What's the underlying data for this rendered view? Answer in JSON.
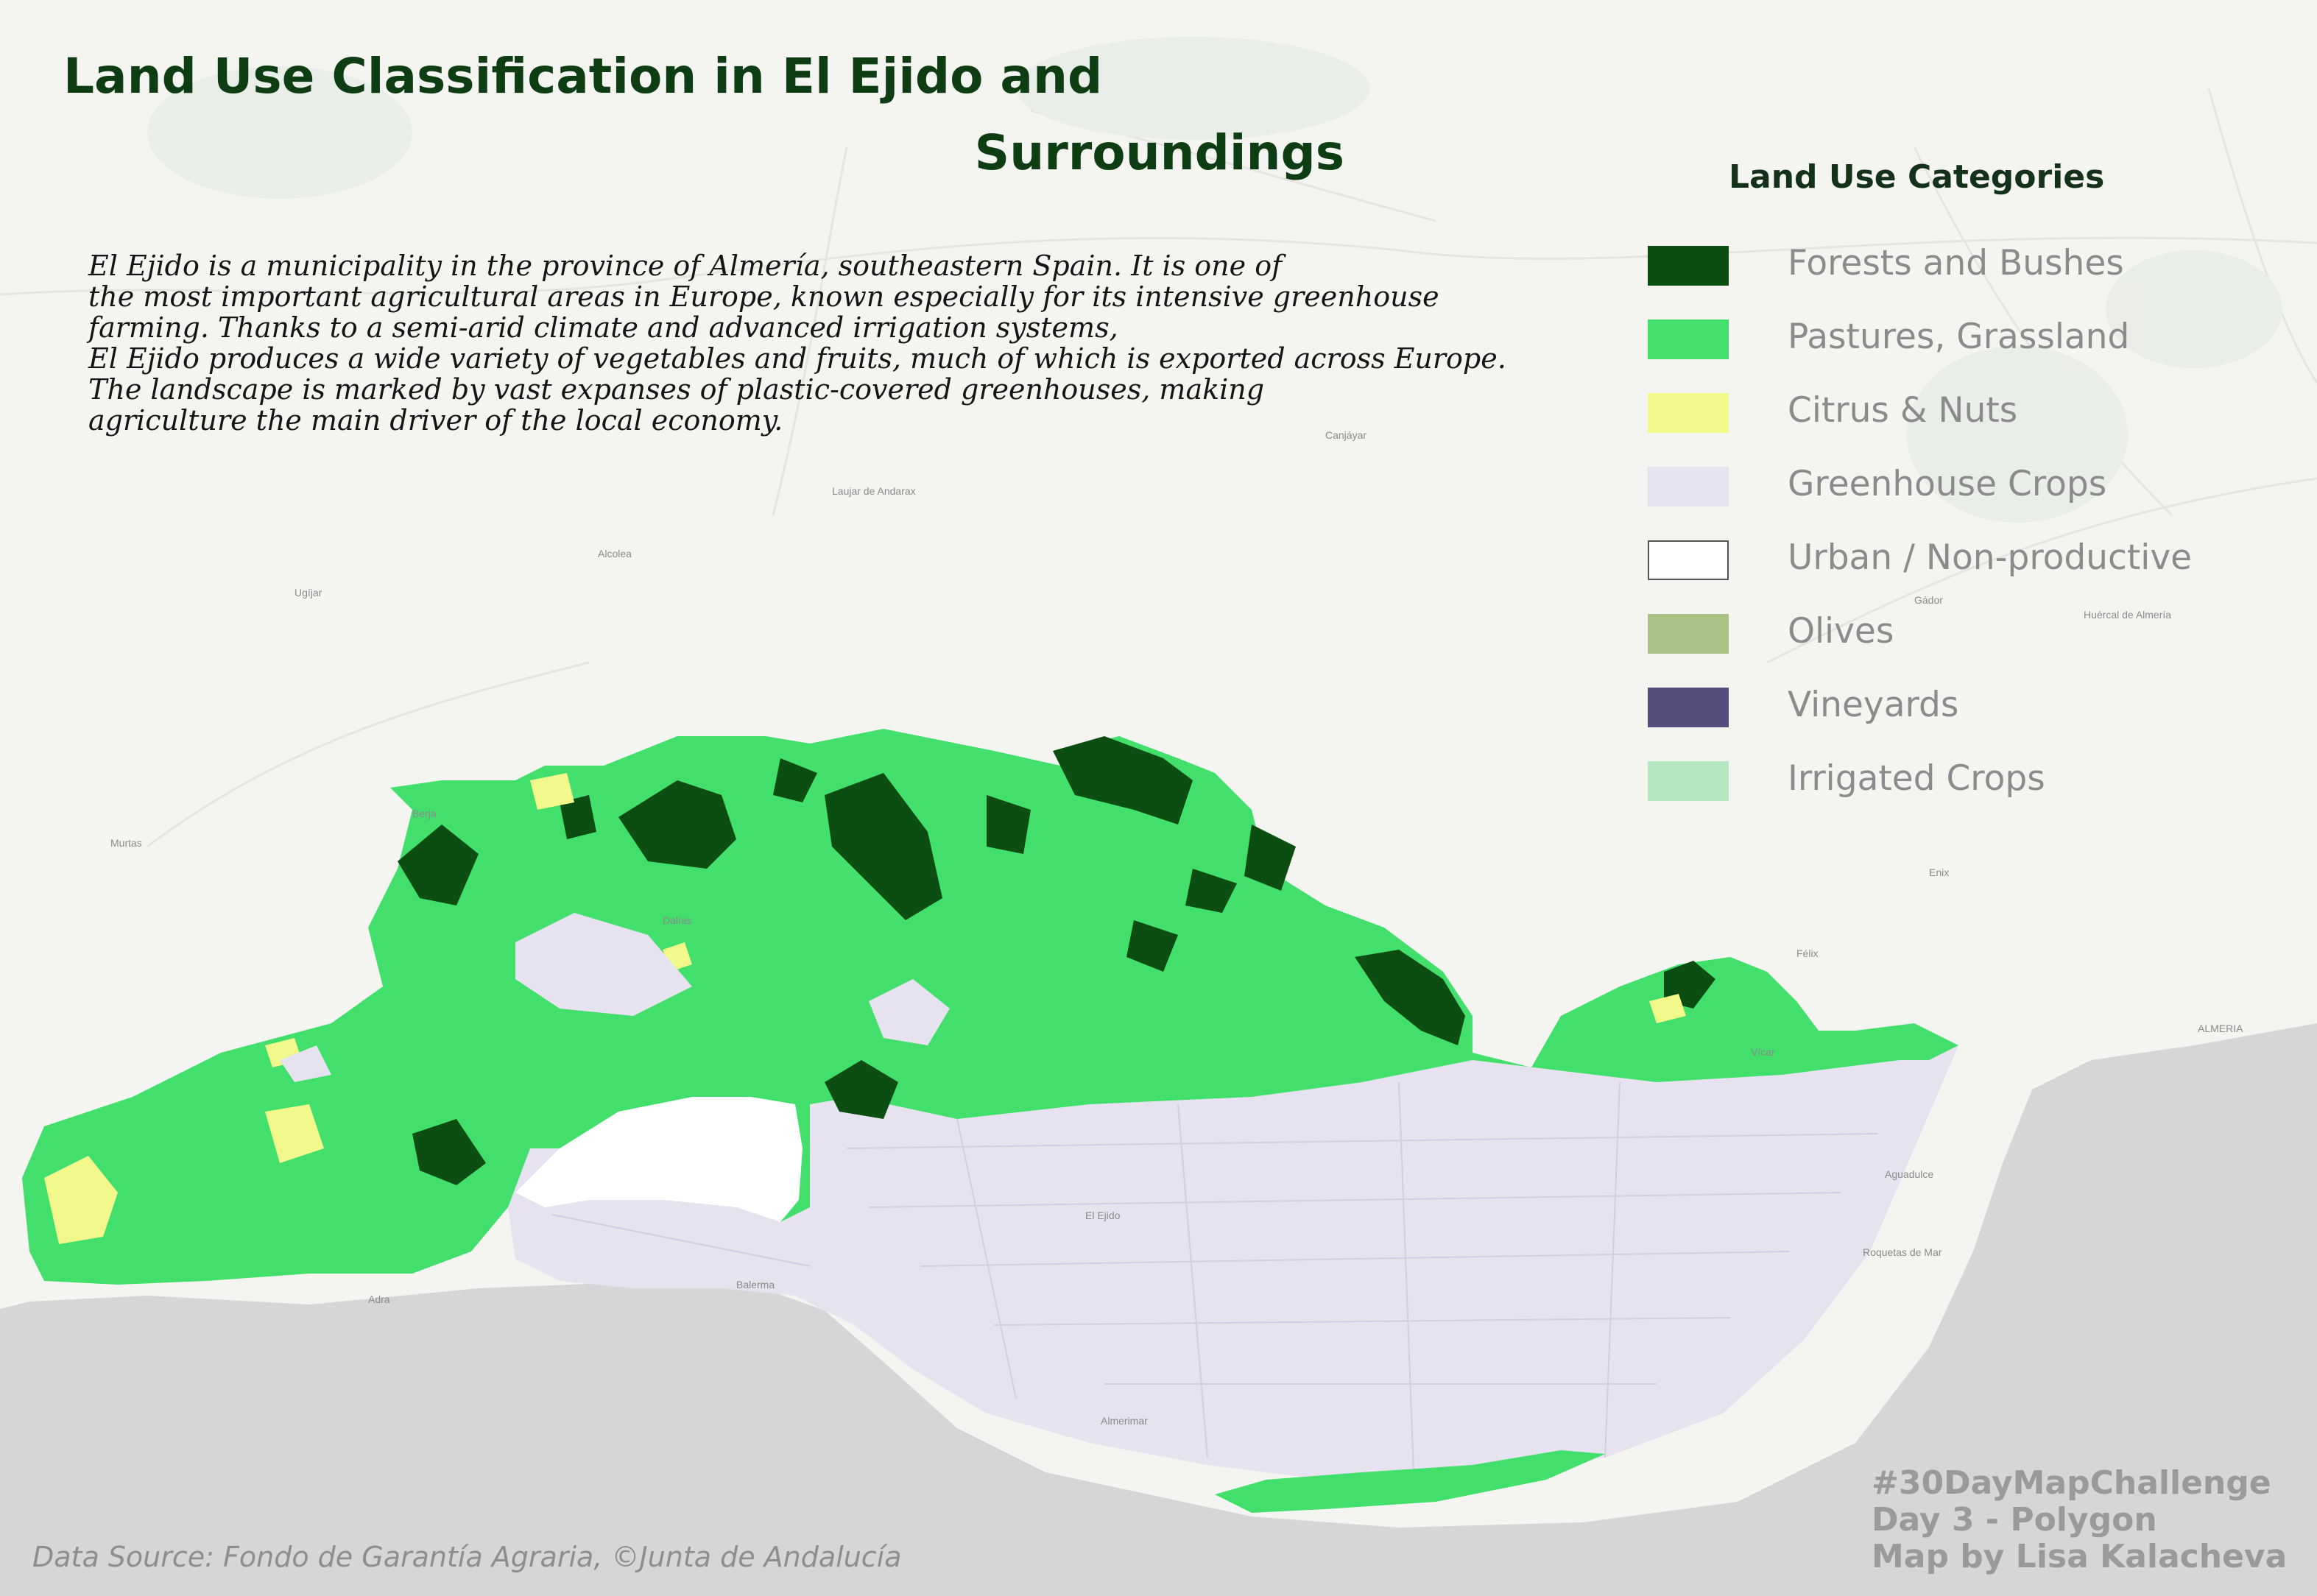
{
  "title": {
    "line1": "Land Use Classification in El Ejido and",
    "line2": "Surroundings"
  },
  "description": [
    "El Ejido is a municipality in the province of Almería, southeastern Spain. It is one of",
    "the most important agricultural areas in Europe, known especially for its intensive greenhouse",
    "farming. Thanks to a semi-arid climate and advanced irrigation systems,",
    "El Ejido produces a wide variety of vegetables and fruits, much of which is exported across Europe.",
    "The landscape is marked by vast expanses of plastic-covered greenhouses, making",
    "agriculture the main driver of the local economy."
  ],
  "legend": {
    "title": "Land Use Categories",
    "items": [
      {
        "label": "Forests and Bushes",
        "color": "#0c4d12"
      },
      {
        "label": "Pastures, Grassland",
        "color": "#42df6c"
      },
      {
        "label": "Citrus & Nuts",
        "color": "#f2f98a"
      },
      {
        "label": "Greenhouse Crops",
        "color": "#e6e2ef"
      },
      {
        "label": "Urban / Non-productive",
        "color": "#ffffff"
      },
      {
        "label": "Olives",
        "color": "#a9c285"
      },
      {
        "label": "Vineyards",
        "color": "#544e7d"
      },
      {
        "label": "Irrigated Crops",
        "color": "#b3e8c1"
      }
    ]
  },
  "source": "Data  Source: Fondo de Garantía Agraria, ©Junta de Andalucía",
  "credit": {
    "line1": "#30DayMapChallenge",
    "line2": "Day 3 - Polygon",
    "line3": "Map by Lisa Kalacheva"
  },
  "basemap_labels": {
    "el_ejido": "El Ejido",
    "almeria": "ALMERIA",
    "roquetas": "Roquetas de Mar",
    "aguadulce": "Aguadulce",
    "adra": "Adra",
    "vicar": "Vícar",
    "berja": "Berja",
    "dalias": "Dalías",
    "felix": "Félix",
    "enix": "Enix",
    "almerimar": "Almerimar",
    "balerma": "Balerma",
    "alcolea": "Alcolea",
    "ugijar": "Ugíjar",
    "gador": "Gádor",
    "laujar": "Laujar de Andarax",
    "murtas": "Murtas",
    "canjayar": "Canjáyar",
    "huercal": "Huércal de Almería"
  },
  "colors": {
    "sea": "#d4d6d8",
    "land": "#f4f4f1",
    "forest": "#0c4d12",
    "pasture": "#42df6c",
    "citrus": "#f2f98a",
    "greenhouse": "#e6e2ef",
    "urban": "#ffffff"
  }
}
